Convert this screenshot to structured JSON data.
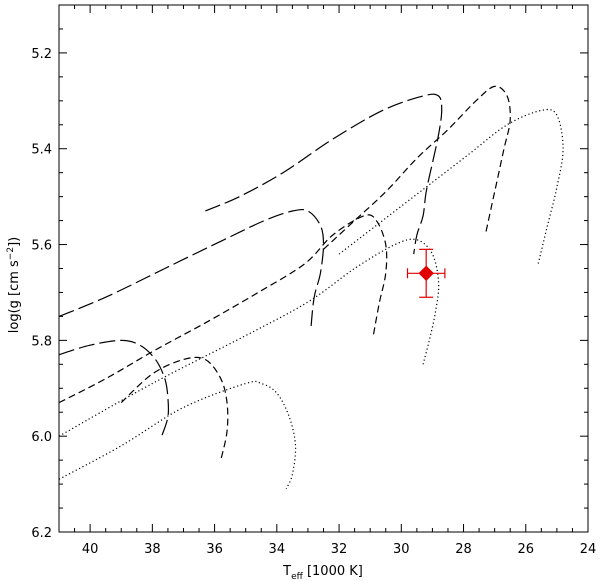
{
  "chart_data": {
    "type": "line",
    "title": "",
    "xlabel": {
      "base": "T",
      "sub": "eff",
      "rest": " [1000 K]"
    },
    "ylabel": {
      "base": "log(g [cm s",
      "sup": "−2",
      "rest": "])"
    },
    "xlim": [
      41,
      24
    ],
    "ylim": [
      6.2,
      5.1
    ],
    "x_ticks": [
      40,
      38,
      36,
      34,
      32,
      30,
      28,
      26,
      24
    ],
    "y_ticks": [
      5.2,
      5.4,
      5.6,
      5.8,
      6.0,
      6.2
    ],
    "x_tick_labels": [
      "40",
      "38",
      "36",
      "34",
      "32",
      "30",
      "28",
      "26",
      "24"
    ],
    "y_tick_labels": [
      "5.2",
      "5.4",
      "5.6",
      "5.8",
      "6.0",
      "6.2"
    ],
    "grid": false,
    "series": [
      {
        "style": "long-dash",
        "color": "#000000",
        "points": [
          [
            36.3,
            5.53
          ],
          [
            35.2,
            5.5
          ],
          [
            33.8,
            5.45
          ],
          [
            32.2,
            5.38
          ],
          [
            30.6,
            5.32
          ],
          [
            29.3,
            5.29
          ],
          [
            28.8,
            5.29
          ],
          [
            28.7,
            5.32
          ],
          [
            28.8,
            5.37
          ],
          [
            29.0,
            5.43
          ],
          [
            29.2,
            5.49
          ],
          [
            29.3,
            5.54
          ],
          [
            29.5,
            5.58
          ],
          [
            29.6,
            5.62
          ]
        ]
      },
      {
        "style": "long-dash",
        "color": "#000000",
        "points": [
          [
            41.0,
            5.75
          ],
          [
            39.5,
            5.71
          ],
          [
            37.6,
            5.65
          ],
          [
            35.7,
            5.59
          ],
          [
            34.4,
            5.55
          ],
          [
            33.5,
            5.53
          ],
          [
            33.0,
            5.53
          ],
          [
            32.6,
            5.56
          ],
          [
            32.5,
            5.6
          ],
          [
            32.6,
            5.66
          ],
          [
            32.8,
            5.71
          ],
          [
            32.9,
            5.77
          ]
        ]
      },
      {
        "style": "long-dash",
        "color": "#000000",
        "points": [
          [
            41.0,
            5.83
          ],
          [
            40.0,
            5.81
          ],
          [
            39.0,
            5.8
          ],
          [
            38.4,
            5.81
          ],
          [
            37.9,
            5.84
          ],
          [
            37.6,
            5.88
          ],
          [
            37.5,
            5.92
          ],
          [
            37.5,
            5.96
          ],
          [
            37.7,
            6.0
          ]
        ]
      },
      {
        "style": "dash",
        "color": "#000000",
        "points": [
          [
            41.0,
            5.93
          ],
          [
            39.5,
            5.88
          ],
          [
            37.9,
            5.82
          ],
          [
            36.2,
            5.76
          ],
          [
            34.6,
            5.7
          ],
          [
            33.1,
            5.64
          ],
          [
            32.2,
            5.58
          ],
          [
            31.2,
            5.54
          ],
          [
            30.8,
            5.55
          ],
          [
            30.5,
            5.6
          ],
          [
            30.5,
            5.66
          ],
          [
            30.7,
            5.72
          ],
          [
            30.9,
            5.79
          ]
        ]
      },
      {
        "style": "dash",
        "color": "#000000",
        "points": [
          [
            32.5,
            5.61
          ],
          [
            31.5,
            5.55
          ],
          [
            30.5,
            5.49
          ],
          [
            29.5,
            5.42
          ],
          [
            28.5,
            5.36
          ],
          [
            27.6,
            5.3
          ],
          [
            27.0,
            5.27
          ],
          [
            26.6,
            5.29
          ],
          [
            26.5,
            5.34
          ],
          [
            26.7,
            5.4
          ],
          [
            26.9,
            5.46
          ],
          [
            27.1,
            5.52
          ],
          [
            27.3,
            5.58
          ]
        ]
      },
      {
        "style": "dash",
        "color": "#000000",
        "points": [
          [
            39.0,
            5.93
          ],
          [
            38.0,
            5.87
          ],
          [
            37.0,
            5.84
          ],
          [
            36.3,
            5.84
          ],
          [
            35.8,
            5.88
          ],
          [
            35.6,
            5.93
          ],
          [
            35.6,
            5.99
          ],
          [
            35.8,
            6.05
          ]
        ]
      },
      {
        "style": "dot",
        "color": "#000000",
        "points": [
          [
            41.0,
            6.09
          ],
          [
            39.0,
            6.02
          ],
          [
            37.0,
            5.94
          ],
          [
            35.0,
            5.89
          ],
          [
            34.5,
            5.89
          ],
          [
            34.0,
            5.91
          ],
          [
            33.6,
            5.96
          ],
          [
            33.4,
            6.02
          ],
          [
            33.5,
            6.08
          ],
          [
            33.7,
            6.11
          ]
        ]
      },
      {
        "style": "dot",
        "color": "#000000",
        "points": [
          [
            41.0,
            6.0
          ],
          [
            38.0,
            5.89
          ],
          [
            35.0,
            5.79
          ],
          [
            33.0,
            5.72
          ],
          [
            31.5,
            5.65
          ],
          [
            30.2,
            5.6
          ],
          [
            29.5,
            5.59
          ],
          [
            29.0,
            5.62
          ],
          [
            28.8,
            5.68
          ],
          [
            28.9,
            5.74
          ],
          [
            29.1,
            5.8
          ],
          [
            29.3,
            5.85
          ]
        ]
      },
      {
        "style": "dot",
        "color": "#000000",
        "points": [
          [
            32.0,
            5.62
          ],
          [
            30.6,
            5.55
          ],
          [
            29.2,
            5.48
          ],
          [
            27.8,
            5.41
          ],
          [
            26.6,
            5.35
          ],
          [
            25.5,
            5.32
          ],
          [
            25.0,
            5.33
          ],
          [
            24.8,
            5.4
          ],
          [
            25.0,
            5.48
          ],
          [
            25.3,
            5.56
          ],
          [
            25.6,
            5.64
          ]
        ]
      }
    ],
    "markers": [
      {
        "shape": "diamond",
        "color": "#e00000",
        "x": 29.2,
        "y": 5.66,
        "xerr": 0.6,
        "yerr": 0.05
      }
    ]
  }
}
